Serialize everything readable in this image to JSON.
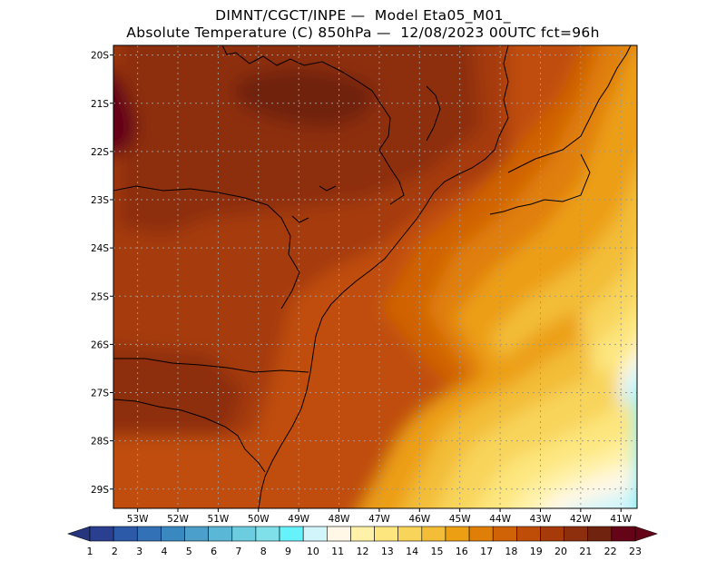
{
  "title_line1": "DIMNT/CGCT/INPE —  Model Eta05_M01_",
  "title_line2": "Absolute Temperature (C) 850hPa —  12/08/2023 00UTC fct=96h",
  "map": {
    "lat_ticks": [
      "20S",
      "21S",
      "22S",
      "23S",
      "24S",
      "25S",
      "26S",
      "27S",
      "28S",
      "29S"
    ],
    "lon_ticks": [
      "53W",
      "52W",
      "51W",
      "50W",
      "49W",
      "48W",
      "47W",
      "46W",
      "45W",
      "44W",
      "43W",
      "42W",
      "41W"
    ],
    "lat_values": [
      -20,
      -21,
      -22,
      -23,
      -24,
      -25,
      -26,
      -27,
      -28,
      -29
    ],
    "lon_values": [
      -53,
      -52,
      -51,
      -50,
      -49,
      -48,
      -47,
      -46,
      -45,
      -44,
      -43,
      -42,
      -41
    ],
    "lon_range": [
      -53.6,
      -40.6
    ],
    "lat_range": [
      -19.8,
      -29.4
    ]
  },
  "colorbar": {
    "labels": [
      "1",
      "2",
      "3",
      "4",
      "5",
      "6",
      "7",
      "8",
      "9",
      "10",
      "11",
      "12",
      "13",
      "14",
      "15",
      "16",
      "17",
      "18",
      "19",
      "20",
      "21",
      "22",
      "23"
    ],
    "colors": [
      "#2a3f8f",
      "#2c5aa8",
      "#3271b5",
      "#3a88c0",
      "#4aa0cb",
      "#5bb7d6",
      "#6ccde0",
      "#7fe0ea",
      "#66f2fa",
      "#d2f5fb",
      "#fff8e6",
      "#fff2a8",
      "#fde67e",
      "#f8d45a",
      "#f3bd37",
      "#ec9f12",
      "#e07f08",
      "#d06306",
      "#c04d07",
      "#a63a08",
      "#8d2e0c",
      "#70240f",
      "#650416"
    ]
  }
}
